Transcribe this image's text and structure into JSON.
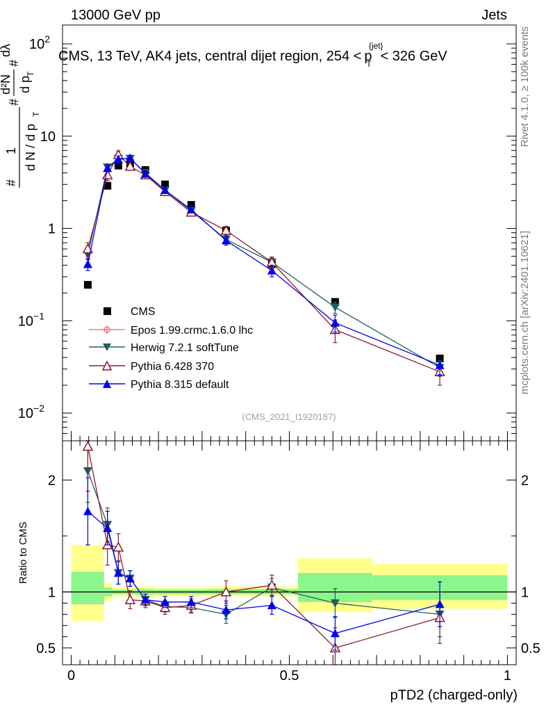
{
  "header": {
    "left": "13000 GeV pp",
    "right": "Jets"
  },
  "side_labels": {
    "rivet": "Rivet 4.1.0, ≥ 100k events",
    "mcplots": "mcplots.cern.ch [arXiv:2401.10621]"
  },
  "colors": {
    "cms": "#000000",
    "epos": "#f08080",
    "herwig": "#1f5f5f",
    "pythia6": "#8b1a2b",
    "pythia8": "#0000ee",
    "band_outer": "#ffff8c",
    "band_inner": "#8cf58c"
  },
  "chart_data": [
    {
      "type": "scatter",
      "title": "CMS, 13 TeV, AK4 jets, central dijet region, 254 < pT(jet) < 326 GeV",
      "title_parts": {
        "prefix": "CMS, 13 TeV, AK4 jets, central dijet region, 254 <",
        "p": "p",
        "sub": "T",
        "sup": "{jet}",
        "suffix": "< 326 GeV"
      },
      "ylabel": "1/N dN/dpT d²N/dpT dλ",
      "ylabel_parts": {
        "hash": "#",
        "one": "1",
        "dN": "d N / d p",
        "d2N": "d²N",
        "dp": "d p",
        "dlam": "dλ",
        "T": "T"
      },
      "yscale": "log",
      "ylim": [
        0.005,
        160
      ],
      "xlim": [
        -0.02,
        1.02
      ],
      "yticks": [
        {
          "value": 0.01,
          "base": "10",
          "exp": "−2"
        },
        {
          "value": 0.1,
          "base": "10",
          "exp": "−1"
        },
        {
          "value": 1,
          "base": "1",
          "exp": ""
        },
        {
          "value": 10,
          "base": "10",
          "exp": ""
        },
        {
          "value": 100,
          "base": "10",
          "exp": "2"
        }
      ],
      "watermark": "(CMS_2021_I1920187)",
      "legend": [
        "CMS",
        "Epos 1.99.crmc.1.6.0 lhc",
        "Herwig 7.2.1 softTune",
        "Pythia 6.428 370",
        "Pythia 8.315 default"
      ],
      "legend_position": "lower-left",
      "x": [
        0.038,
        0.083,
        0.108,
        0.135,
        0.17,
        0.215,
        0.275,
        0.355,
        0.46,
        0.605,
        0.845
      ],
      "series": [
        {
          "name": "CMS",
          "marker": "square",
          "values": [
            0.245,
            2.9,
            4.8,
            5.1,
            4.3,
            3.0,
            1.8,
            0.95,
            0.41,
            0.16,
            0.039
          ]
        },
        {
          "name": "Herwig 7.2.1 softTune",
          "marker": "triangle-down",
          "values": [
            0.52,
            4.6,
            5.7,
            5.7,
            4.0,
            2.6,
            1.55,
            0.76,
            0.43,
            0.14,
            0.031
          ]
        },
        {
          "name": "Pythia 6.428 370",
          "marker": "triangle-up-open",
          "values": [
            0.6,
            3.8,
            6.3,
            4.7,
            3.8,
            2.5,
            1.5,
            0.95,
            0.43,
            0.08,
            0.028
          ]
        },
        {
          "name": "Pythia 8.315 default",
          "marker": "triangle-up",
          "values": [
            0.41,
            4.5,
            5.6,
            5.8,
            3.9,
            2.6,
            1.6,
            0.74,
            0.35,
            0.095,
            0.033
          ]
        }
      ],
      "yerr": {
        "Pythia 6.428 370": [
          0.1,
          0.5,
          0.6,
          0.4,
          0.3,
          0.2,
          0.12,
          0.1,
          0.06,
          0.022,
          0.008
        ],
        "Pythia 8.315 default": [
          0.06,
          0.4,
          0.5,
          0.4,
          0.3,
          0.2,
          0.12,
          0.08,
          0.05,
          0.02,
          0.007
        ],
        "Herwig 7.2.1 softTune": [
          0.06,
          0.4,
          0.5,
          0.4,
          0.3,
          0.2,
          0.12,
          0.07,
          0.05,
          0.02,
          0.006
        ]
      }
    },
    {
      "type": "scatter",
      "title": "",
      "ylabel": "Ratio to CMS",
      "xlabel": "pTD2 (charged-only)",
      "ylim": [
        0.35,
        2.35
      ],
      "xlim": [
        -0.02,
        1.02
      ],
      "yticks": [
        0.5,
        1,
        2
      ],
      "ytick_labels": [
        "0.5",
        "1",
        "2"
      ],
      "xticks": [
        0,
        0.5,
        1
      ],
      "xtick_labels": [
        "0",
        "0.5",
        "1"
      ],
      "x": [
        0.038,
        0.083,
        0.108,
        0.135,
        0.17,
        0.215,
        0.275,
        0.355,
        0.46,
        0.605,
        0.845
      ],
      "series": [
        {
          "name": "Herwig 7.2.1 softTune",
          "values": [
            2.08,
            1.6,
            1.17,
            1.12,
            0.93,
            0.87,
            0.86,
            0.8,
            1.04,
            0.9,
            0.8
          ]
        },
        {
          "name": "Pythia 6.428 370",
          "values": [
            2.3,
            1.42,
            1.4,
            0.93,
            0.92,
            0.86,
            0.88,
            1.0,
            1.06,
            0.5,
            0.77
          ]
        },
        {
          "name": "Pythia 8.315 default",
          "values": [
            1.72,
            1.57,
            1.17,
            1.12,
            0.93,
            0.91,
            0.91,
            0.84,
            0.88,
            0.63,
            0.89
          ]
        }
      ],
      "yerr": {
        "Herwig 7.2.1 softTune": [
          0.28,
          0.15,
          0.1,
          0.07,
          0.05,
          0.05,
          0.05,
          0.08,
          0.08,
          0.13,
          0.2
        ],
        "Pythia 6.428 370": [
          0.4,
          0.18,
          0.12,
          0.08,
          0.06,
          0.06,
          0.06,
          0.1,
          0.09,
          0.18,
          0.23
        ],
        "Pythia 8.315 default": [
          0.3,
          0.15,
          0.1,
          0.07,
          0.05,
          0.05,
          0.05,
          0.08,
          0.08,
          0.15,
          0.2
        ]
      },
      "uncertainty_bands": [
        {
          "x0": 0.0,
          "x1": 0.075,
          "outer": [
            0.74,
            1.42
          ],
          "inner": [
            0.89,
            1.18
          ]
        },
        {
          "x0": 0.075,
          "x1": 0.093,
          "outer": [
            0.92,
            1.08
          ],
          "inner": [
            0.96,
            1.04
          ]
        },
        {
          "x0": 0.093,
          "x1": 0.123,
          "outer": [
            0.96,
            1.04
          ],
          "inner": [
            0.98,
            1.02
          ]
        },
        {
          "x0": 0.123,
          "x1": 0.15,
          "outer": [
            0.96,
            1.04
          ],
          "inner": [
            0.98,
            1.02
          ]
        },
        {
          "x0": 0.15,
          "x1": 0.19,
          "outer": [
            0.95,
            1.05
          ],
          "inner": [
            0.975,
            1.025
          ]
        },
        {
          "x0": 0.19,
          "x1": 0.245,
          "outer": [
            0.96,
            1.04
          ],
          "inner": [
            0.98,
            1.02
          ]
        },
        {
          "x0": 0.245,
          "x1": 0.31,
          "outer": [
            0.96,
            1.04
          ],
          "inner": [
            0.98,
            1.02
          ]
        },
        {
          "x0": 0.31,
          "x1": 0.41,
          "outer": [
            0.96,
            1.05
          ],
          "inner": [
            0.98,
            1.025
          ]
        },
        {
          "x0": 0.41,
          "x1": 0.52,
          "outer": [
            0.96,
            1.05
          ],
          "inner": [
            0.98,
            1.025
          ]
        },
        {
          "x0": 0.52,
          "x1": 0.69,
          "outer": [
            0.82,
            1.3
          ],
          "inner": [
            0.91,
            1.17
          ]
        },
        {
          "x0": 0.69,
          "x1": 1.0,
          "outer": [
            0.85,
            1.25
          ],
          "inner": [
            0.93,
            1.15
          ]
        }
      ]
    }
  ]
}
